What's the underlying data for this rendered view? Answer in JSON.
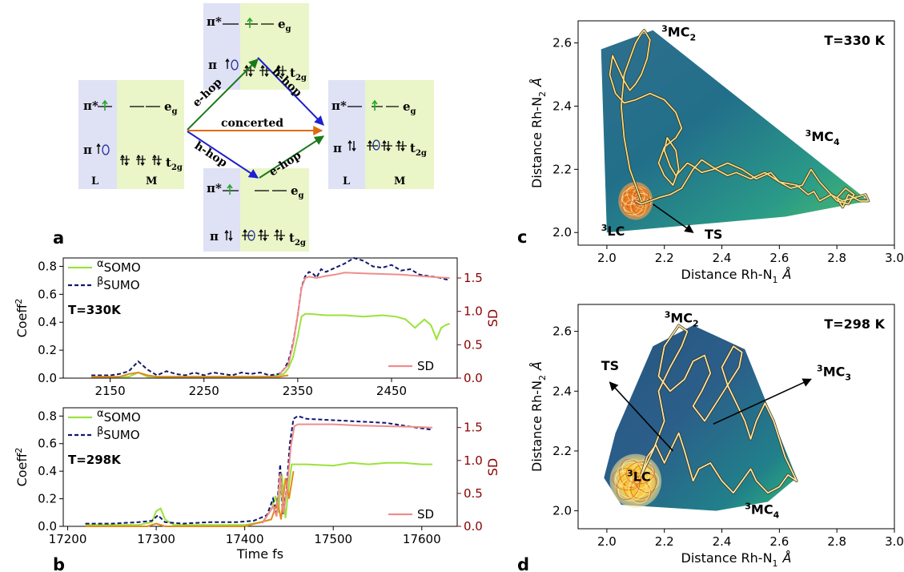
{
  "panel_labels": {
    "a": "a",
    "b": "b",
    "c": "c",
    "d": "d"
  },
  "diagram_a": {
    "labels": {
      "pi": "π",
      "pi_star": "π*",
      "eg": "e",
      "eg_sub": "g",
      "t2g": "t",
      "t2g_sub": "2g",
      "L": "L",
      "M": "M",
      "e_hop": "e-hop",
      "h_hop": "h-hop",
      "concerted": "concerted"
    },
    "colors": {
      "L_box": "#dfe1f5",
      "M_box": "#eaf5c8",
      "green_arrow": "#1a7a1a",
      "blue_arrow": "#1f1fd1",
      "orange_arrow": "#e06a10",
      "electron_green": "#22aa22"
    }
  },
  "chart_data": [
    {
      "id": "b-top",
      "type": "line",
      "annotation": "T=330K",
      "ylabel": "Coeff",
      "ylabel_sup": "2",
      "y2label": "SD",
      "xticks": [
        2150,
        2250,
        2350,
        2450
      ],
      "yticks": [
        "0.0",
        "0.2",
        "0.4",
        "0.6",
        "0.8"
      ],
      "y2ticks": [
        "0.0",
        "0.5",
        "1.0",
        "1.5"
      ],
      "xlim": [
        2100,
        2520
      ],
      "ylim": [
        0,
        0.86
      ],
      "y2lim": [
        0,
        1.8
      ],
      "legend": [
        {
          "sup": "α",
          "sub": "SOMO"
        },
        {
          "sup": "β",
          "sub": "SUMO"
        }
      ],
      "legend2": "SD",
      "series": [
        {
          "key": "alpha",
          "color": "#9be23a",
          "dash": "",
          "x": [
            2130,
            2170,
            2180,
            2190,
            2250,
            2300,
            2320,
            2335,
            2340,
            2345,
            2350,
            2354,
            2358,
            2362,
            2380,
            2400,
            2420,
            2440,
            2455,
            2465,
            2475,
            2485,
            2492,
            2498,
            2503,
            2508,
            2512
          ],
          "y": [
            0.01,
            0.01,
            0.04,
            0.01,
            0.01,
            0.01,
            0.01,
            0.03,
            0.07,
            0.15,
            0.3,
            0.44,
            0.46,
            0.46,
            0.45,
            0.45,
            0.44,
            0.45,
            0.44,
            0.42,
            0.36,
            0.42,
            0.38,
            0.28,
            0.36,
            0.38,
            0.39
          ]
        },
        {
          "key": "beta",
          "color": "#10186e",
          "dash": "5,3",
          "x": [
            2130,
            2150,
            2160,
            2170,
            2180,
            2190,
            2200,
            2210,
            2220,
            2230,
            2240,
            2250,
            2260,
            2270,
            2280,
            2290,
            2300,
            2310,
            2320,
            2330,
            2335,
            2340,
            2345,
            2350,
            2354,
            2358,
            2362,
            2366,
            2370,
            2375,
            2380,
            2390,
            2400,
            2410,
            2420,
            2430,
            2440,
            2450,
            2460,
            2470,
            2480,
            2490,
            2500,
            2512
          ],
          "y": [
            0.02,
            0.02,
            0.03,
            0.05,
            0.12,
            0.06,
            0.02,
            0.05,
            0.03,
            0.02,
            0.04,
            0.02,
            0.04,
            0.03,
            0.02,
            0.04,
            0.03,
            0.04,
            0.02,
            0.03,
            0.06,
            0.12,
            0.25,
            0.45,
            0.65,
            0.73,
            0.76,
            0.75,
            0.72,
            0.78,
            0.76,
            0.79,
            0.82,
            0.86,
            0.84,
            0.8,
            0.79,
            0.81,
            0.77,
            0.78,
            0.74,
            0.73,
            0.72,
            0.7
          ]
        },
        {
          "key": "orange",
          "color": "#e38a1a",
          "dash": "",
          "x": [
            2130,
            2160,
            2170,
            2180,
            2190,
            2200,
            2250,
            2300,
            2330,
            2340
          ],
          "y": [
            0.01,
            0.01,
            0.03,
            0.04,
            0.02,
            0.01,
            0.01,
            0.01,
            0.01,
            0.02
          ]
        },
        {
          "key": "sd",
          "axis": "right",
          "color": "#f08c8c",
          "dash": "",
          "x": [
            2330,
            2340,
            2345,
            2350,
            2354,
            2358,
            2362,
            2370,
            2380,
            2390,
            2400,
            2420,
            2440,
            2460,
            2480,
            2500,
            2512
          ],
          "y": [
            0.05,
            0.2,
            0.5,
            0.95,
            1.35,
            1.5,
            1.52,
            1.5,
            1.53,
            1.55,
            1.58,
            1.57,
            1.56,
            1.55,
            1.53,
            1.51,
            1.5
          ]
        }
      ]
    },
    {
      "id": "b-bottom",
      "type": "line",
      "annotation": "T=298K",
      "ylabel": "Coeff",
      "ylabel_sup": "2",
      "y2label": "SD",
      "xlabel": "Time fs",
      "xticks": [
        17200,
        17300,
        17400,
        17500,
        17600
      ],
      "yticks": [
        "0.0",
        "0.2",
        "0.4",
        "0.6",
        "0.8"
      ],
      "y2ticks": [
        "0.0",
        "0.5",
        "1.0",
        "1.5"
      ],
      "xlim": [
        17195,
        17640
      ],
      "ylim": [
        0,
        0.86
      ],
      "y2lim": [
        0,
        1.8
      ],
      "legend": [
        {
          "sup": "α",
          "sub": "SOMO"
        },
        {
          "sup": "β",
          "sub": "SUMO"
        }
      ],
      "legend2": "SD",
      "series": [
        {
          "key": "alpha",
          "color": "#9be23a",
          "dash": "",
          "x": [
            17220,
            17280,
            17295,
            17300,
            17305,
            17310,
            17320,
            17400,
            17420,
            17430,
            17435,
            17438,
            17442,
            17446,
            17450,
            17453,
            17458,
            17470,
            17500,
            17520,
            17540,
            17560,
            17580,
            17600,
            17612
          ],
          "y": [
            0.01,
            0.01,
            0.03,
            0.11,
            0.13,
            0.05,
            0.01,
            0.01,
            0.03,
            0.12,
            0.22,
            0.1,
            0.38,
            0.06,
            0.3,
            0.45,
            0.45,
            0.45,
            0.44,
            0.46,
            0.45,
            0.46,
            0.46,
            0.45,
            0.45
          ]
        },
        {
          "key": "beta",
          "color": "#10186e",
          "dash": "5,3",
          "x": [
            17220,
            17250,
            17280,
            17295,
            17302,
            17310,
            17330,
            17360,
            17390,
            17410,
            17425,
            17432,
            17436,
            17440,
            17443,
            17447,
            17451,
            17455,
            17460,
            17470,
            17500,
            17530,
            17560,
            17590,
            17612
          ],
          "y": [
            0.02,
            0.02,
            0.03,
            0.04,
            0.08,
            0.03,
            0.02,
            0.03,
            0.03,
            0.04,
            0.08,
            0.2,
            0.1,
            0.45,
            0.08,
            0.25,
            0.6,
            0.78,
            0.8,
            0.78,
            0.77,
            0.76,
            0.75,
            0.72,
            0.7
          ]
        },
        {
          "key": "orange",
          "color": "#e38a1a",
          "dash": "",
          "x": [
            17220,
            17290,
            17300,
            17310,
            17400,
            17430,
            17437,
            17441,
            17446,
            17450,
            17455
          ],
          "y": [
            0.0,
            0.0,
            0.02,
            0.0,
            0.0,
            0.05,
            0.18,
            0.05,
            0.35,
            0.2,
            0.4
          ]
        },
        {
          "key": "sd",
          "axis": "right",
          "color": "#f08c8c",
          "dash": "",
          "x": [
            17420,
            17432,
            17436,
            17440,
            17444,
            17448,
            17452,
            17456,
            17460,
            17480,
            17500,
            17530,
            17560,
            17590,
            17612
          ],
          "y": [
            0.05,
            0.3,
            0.15,
            0.8,
            0.2,
            0.6,
            1.2,
            1.52,
            1.55,
            1.55,
            1.55,
            1.53,
            1.52,
            1.51,
            1.5
          ]
        }
      ]
    },
    {
      "id": "c",
      "type": "scatter",
      "annotation": "T=330 K",
      "xlabel": "Distance Rh-N",
      "xlabel_sub": "1",
      "xlabel_unit": "Å",
      "ylabel": "Distance Rh-N",
      "ylabel_sub": "2",
      "ylabel_unit": "Å",
      "xticks": [
        "2.0",
        "2.2",
        "2.4",
        "2.6",
        "2.8",
        "3.0"
      ],
      "yticks": [
        "2.0",
        "2.2",
        "2.4",
        "2.6"
      ],
      "xlim": [
        1.9,
        3.0
      ],
      "ylim": [
        1.96,
        2.67
      ],
      "region_labels": [
        {
          "main": "3",
          "rest": "MC",
          "sub": "2",
          "x": 2.19,
          "y": 2.62
        },
        {
          "main": "3",
          "rest": "MC",
          "sub": "4",
          "x": 2.69,
          "y": 2.29
        },
        {
          "main": "3",
          "rest": "LC",
          "sub": "",
          "x": 1.98,
          "y": 1.99
        },
        {
          "main": "",
          "rest": "TS",
          "sub": "",
          "x": 2.34,
          "y": 1.98
        }
      ],
      "arrow": {
        "from": [
          2.16,
          2.09
        ],
        "to": [
          2.3,
          2.0
        ]
      },
      "hull": [
        [
          2.0,
          2.0
        ],
        [
          1.98,
          2.58
        ],
        [
          2.16,
          2.64
        ],
        [
          2.91,
          2.1
        ],
        [
          2.62,
          2.05
        ]
      ],
      "trajectory_yellow": {
        "x": [
          2.12,
          2.1,
          2.08,
          2.06,
          2.05,
          2.06,
          2.08,
          2.1,
          2.12,
          2.13,
          2.15,
          2.14,
          2.12,
          2.1,
          2.08,
          2.06,
          2.04,
          2.02,
          2.01,
          2.03,
          2.06,
          2.1,
          2.15,
          2.2,
          2.24,
          2.26,
          2.24,
          2.2,
          2.18,
          2.2,
          2.23,
          2.25,
          2.24,
          2.21,
          2.2,
          2.22,
          2.24,
          2.26,
          2.28,
          2.3,
          2.33,
          2.37,
          2.42,
          2.47,
          2.52,
          2.57,
          2.6,
          2.64,
          2.68,
          2.71,
          2.74,
          2.78,
          2.82,
          2.86,
          2.9,
          2.91,
          2.88,
          2.84,
          2.82,
          2.8,
          2.83,
          2.86,
          2.84,
          2.8,
          2.78,
          2.74,
          2.72,
          2.7,
          2.66,
          2.6,
          2.55,
          2.5,
          2.45,
          2.42,
          2.38,
          2.33,
          2.3,
          2.28,
          2.26,
          2.22,
          2.18,
          2.15,
          2.12,
          2.1
        ],
        "y": [
          2.1,
          2.15,
          2.2,
          2.3,
          2.4,
          2.5,
          2.55,
          2.6,
          2.63,
          2.64,
          2.61,
          2.55,
          2.5,
          2.47,
          2.45,
          2.48,
          2.52,
          2.56,
          2.5,
          2.44,
          2.41,
          2.42,
          2.44,
          2.42,
          2.38,
          2.33,
          2.3,
          2.27,
          2.22,
          2.18,
          2.15,
          2.2,
          2.26,
          2.3,
          2.26,
          2.21,
          2.18,
          2.2,
          2.22,
          2.21,
          2.19,
          2.2,
          2.22,
          2.2,
          2.17,
          2.19,
          2.16,
          2.14,
          2.15,
          2.2,
          2.16,
          2.12,
          2.1,
          2.11,
          2.12,
          2.1,
          2.1,
          2.12,
          2.08,
          2.11,
          2.14,
          2.12,
          2.09,
          2.1,
          2.12,
          2.1,
          2.13,
          2.12,
          2.15,
          2.16,
          2.19,
          2.17,
          2.19,
          2.18,
          2.2,
          2.23,
          2.2,
          2.17,
          2.14,
          2.12,
          2.11,
          2.1,
          2.09,
          2.1
        ]
      },
      "cluster_center": [
        2.1,
        2.1
      ],
      "cluster_radius": [
        0.06,
        0.06
      ]
    },
    {
      "id": "d",
      "type": "scatter",
      "annotation": "T=298 K",
      "xlabel": "Distance Rh-N",
      "xlabel_sub": "1",
      "xlabel_unit": "Å",
      "ylabel": "Distance Rh-N",
      "ylabel_sub": "2",
      "ylabel_unit": "Å",
      "xticks": [
        "2.0",
        "2.2",
        "2.4",
        "2.6",
        "2.8",
        "3.0"
      ],
      "yticks": [
        "2.0",
        "2.2",
        "2.4",
        "2.6"
      ],
      "xlim": [
        1.9,
        3.0
      ],
      "ylim": [
        1.94,
        2.69
      ],
      "region_labels": [
        {
          "main": "3",
          "rest": "MC",
          "sub": "2",
          "x": 2.2,
          "y": 2.63
        },
        {
          "main": "3",
          "rest": "MC",
          "sub": "3",
          "x": 2.73,
          "y": 2.45
        },
        {
          "main": "3",
          "rest": "MC",
          "sub": "4",
          "x": 2.48,
          "y": 1.99
        },
        {
          "main": "3",
          "rest": "LC",
          "sub": "",
          "x": 2.07,
          "y": 2.1
        },
        {
          "main": "",
          "rest": "TS",
          "sub": "",
          "x": 1.98,
          "y": 2.47
        }
      ],
      "arrows": [
        {
          "from": [
            2.23,
            2.2
          ],
          "to": [
            2.01,
            2.43
          ]
        },
        {
          "from": [
            2.37,
            2.29
          ],
          "to": [
            2.71,
            2.44
          ]
        }
      ],
      "hull": [
        [
          1.99,
          2.11
        ],
        [
          2.03,
          2.26
        ],
        [
          2.16,
          2.55
        ],
        [
          2.3,
          2.62
        ],
        [
          2.48,
          2.54
        ],
        [
          2.66,
          2.11
        ],
        [
          2.56,
          2.03
        ],
        [
          2.38,
          2.0
        ],
        [
          2.05,
          2.02
        ]
      ],
      "trajectory_yellow": {
        "x": [
          2.12,
          2.16,
          2.2,
          2.18,
          2.22,
          2.26,
          2.28,
          2.25,
          2.2,
          2.18,
          2.22,
          2.27,
          2.3,
          2.34,
          2.36,
          2.33,
          2.3,
          2.34,
          2.38,
          2.42,
          2.46,
          2.47,
          2.44,
          2.4,
          2.42,
          2.45,
          2.48,
          2.5,
          2.52,
          2.55,
          2.58,
          2.6,
          2.62,
          2.64,
          2.66,
          2.63,
          2.6,
          2.56,
          2.52,
          2.5,
          2.47,
          2.44,
          2.4,
          2.36,
          2.32,
          2.3,
          2.27,
          2.25,
          2.22,
          2.2,
          2.17,
          2.14,
          2.12
        ],
        "y": [
          2.12,
          2.2,
          2.3,
          2.4,
          2.48,
          2.55,
          2.6,
          2.62,
          2.55,
          2.45,
          2.4,
          2.44,
          2.5,
          2.52,
          2.46,
          2.4,
          2.35,
          2.3,
          2.36,
          2.42,
          2.48,
          2.53,
          2.55,
          2.48,
          2.42,
          2.36,
          2.3,
          2.24,
          2.3,
          2.36,
          2.3,
          2.24,
          2.18,
          2.14,
          2.1,
          2.12,
          2.08,
          2.06,
          2.1,
          2.14,
          2.1,
          2.06,
          2.1,
          2.16,
          2.14,
          2.1,
          2.2,
          2.26,
          2.2,
          2.16,
          2.22,
          2.18,
          2.12
        ]
      },
      "cluster_center": [
        2.1,
        2.1
      ],
      "cluster_radius": [
        0.09,
        0.09
      ]
    }
  ]
}
